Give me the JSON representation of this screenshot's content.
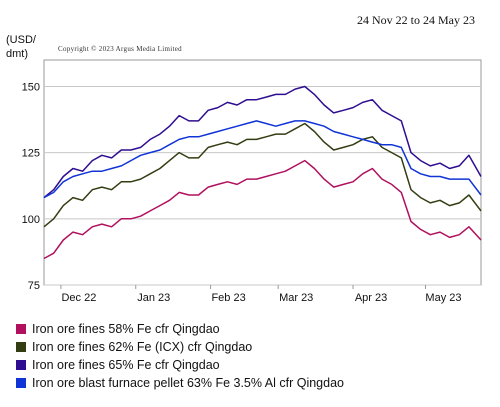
{
  "header": {
    "date_range": "24 Nov 22 to 24 May 23",
    "y_unit_line1": "(USD/",
    "y_unit_line2": "dmt)",
    "copyright": "Copyright © 2023 Argus Media Limited"
  },
  "chart_data": {
    "type": "line",
    "title": "",
    "xlabel": "",
    "ylabel": "(USD/dmt)",
    "ylim": [
      75,
      160
    ],
    "yticks": [
      75,
      100,
      125,
      150
    ],
    "x_range": [
      "2022-11-24",
      "2023-05-24"
    ],
    "xticks": [
      {
        "label": "Dec 22",
        "date": "2022-12-01"
      },
      {
        "label": "Jan 23",
        "date": "2023-01-01"
      },
      {
        "label": "Feb 23",
        "date": "2023-02-01"
      },
      {
        "label": "Mar 23",
        "date": "2023-03-01"
      },
      {
        "label": "Apr 23",
        "date": "2023-04-01"
      },
      {
        "label": "May 23",
        "date": "2023-05-01"
      }
    ],
    "grid": true,
    "legend_position": "bottom",
    "series": [
      {
        "name": "Iron ore fines 58% Fe cfr Qingdao",
        "color": "#b0105e",
        "x": [
          "2022-11-24",
          "2022-11-28",
          "2022-12-02",
          "2022-12-06",
          "2022-12-10",
          "2022-12-14",
          "2022-12-18",
          "2022-12-22",
          "2022-12-26",
          "2022-12-30",
          "2023-01-03",
          "2023-01-07",
          "2023-01-11",
          "2023-01-15",
          "2023-01-19",
          "2023-01-23",
          "2023-01-27",
          "2023-01-31",
          "2023-02-04",
          "2023-02-08",
          "2023-02-12",
          "2023-02-16",
          "2023-02-20",
          "2023-02-24",
          "2023-02-28",
          "2023-03-04",
          "2023-03-08",
          "2023-03-12",
          "2023-03-16",
          "2023-03-20",
          "2023-03-24",
          "2023-03-28",
          "2023-04-01",
          "2023-04-05",
          "2023-04-09",
          "2023-04-13",
          "2023-04-17",
          "2023-04-21",
          "2023-04-25",
          "2023-04-29",
          "2023-05-03",
          "2023-05-07",
          "2023-05-11",
          "2023-05-15",
          "2023-05-19",
          "2023-05-24"
        ],
        "values": [
          85,
          87,
          92,
          95,
          94,
          97,
          98,
          97,
          100,
          100,
          101,
          103,
          105,
          107,
          110,
          109,
          109,
          112,
          113,
          114,
          113,
          115,
          115,
          116,
          117,
          118,
          120,
          122,
          119,
          115,
          112,
          113,
          114,
          117,
          119,
          115,
          113,
          110,
          99,
          96,
          94,
          95,
          93,
          94,
          97,
          92
        ]
      },
      {
        "name": "Iron ore fines 62% Fe (ICX) cfr Qingdao",
        "color": "#333d12",
        "x": [
          "2022-11-24",
          "2022-11-28",
          "2022-12-02",
          "2022-12-06",
          "2022-12-10",
          "2022-12-14",
          "2022-12-18",
          "2022-12-22",
          "2022-12-26",
          "2022-12-30",
          "2023-01-03",
          "2023-01-07",
          "2023-01-11",
          "2023-01-15",
          "2023-01-19",
          "2023-01-23",
          "2023-01-27",
          "2023-01-31",
          "2023-02-04",
          "2023-02-08",
          "2023-02-12",
          "2023-02-16",
          "2023-02-20",
          "2023-02-24",
          "2023-02-28",
          "2023-03-04",
          "2023-03-08",
          "2023-03-12",
          "2023-03-16",
          "2023-03-20",
          "2023-03-24",
          "2023-03-28",
          "2023-04-01",
          "2023-04-05",
          "2023-04-09",
          "2023-04-13",
          "2023-04-17",
          "2023-04-21",
          "2023-04-25",
          "2023-04-29",
          "2023-05-03",
          "2023-05-07",
          "2023-05-11",
          "2023-05-15",
          "2023-05-19",
          "2023-05-24"
        ],
        "values": [
          97,
          100,
          105,
          108,
          107,
          111,
          112,
          111,
          114,
          114,
          115,
          117,
          119,
          122,
          125,
          123,
          123,
          127,
          128,
          129,
          128,
          130,
          130,
          131,
          132,
          132,
          134,
          136,
          133,
          129,
          126,
          127,
          128,
          130,
          131,
          127,
          125,
          123,
          111,
          108,
          106,
          107,
          105,
          106,
          109,
          103
        ]
      },
      {
        "name": "Iron ore fines 65% Fe cfr Qingdao",
        "color": "#2e0d91",
        "x": [
          "2022-11-24",
          "2022-11-28",
          "2022-12-02",
          "2022-12-06",
          "2022-12-10",
          "2022-12-14",
          "2022-12-18",
          "2022-12-22",
          "2022-12-26",
          "2022-12-30",
          "2023-01-03",
          "2023-01-07",
          "2023-01-11",
          "2023-01-15",
          "2023-01-19",
          "2023-01-23",
          "2023-01-27",
          "2023-01-31",
          "2023-02-04",
          "2023-02-08",
          "2023-02-12",
          "2023-02-16",
          "2023-02-20",
          "2023-02-24",
          "2023-02-28",
          "2023-03-04",
          "2023-03-08",
          "2023-03-12",
          "2023-03-16",
          "2023-03-20",
          "2023-03-24",
          "2023-03-28",
          "2023-04-01",
          "2023-04-05",
          "2023-04-09",
          "2023-04-13",
          "2023-04-17",
          "2023-04-21",
          "2023-04-25",
          "2023-04-29",
          "2023-05-03",
          "2023-05-07",
          "2023-05-11",
          "2023-05-15",
          "2023-05-19",
          "2023-05-24"
        ],
        "values": [
          108,
          111,
          116,
          119,
          118,
          122,
          124,
          123,
          126,
          126,
          127,
          130,
          132,
          135,
          139,
          137,
          137,
          141,
          142,
          144,
          143,
          145,
          145,
          146,
          147,
          147,
          149,
          150,
          147,
          143,
          140,
          141,
          142,
          144,
          145,
          141,
          139,
          137,
          125,
          122,
          120,
          121,
          119,
          120,
          124,
          116
        ]
      },
      {
        "name": "Iron ore blast furnace pellet 63% Fe 3.5% Al cfr Qingdao",
        "color": "#1034d6",
        "x": [
          "2022-11-24",
          "2022-11-28",
          "2022-12-02",
          "2022-12-06",
          "2022-12-10",
          "2022-12-14",
          "2022-12-18",
          "2022-12-22",
          "2022-12-26",
          "2022-12-30",
          "2023-01-03",
          "2023-01-07",
          "2023-01-11",
          "2023-01-15",
          "2023-01-19",
          "2023-01-23",
          "2023-01-27",
          "2023-01-31",
          "2023-02-04",
          "2023-02-08",
          "2023-02-12",
          "2023-02-16",
          "2023-02-20",
          "2023-02-24",
          "2023-02-28",
          "2023-03-04",
          "2023-03-08",
          "2023-03-12",
          "2023-03-16",
          "2023-03-20",
          "2023-03-24",
          "2023-03-28",
          "2023-04-01",
          "2023-04-05",
          "2023-04-09",
          "2023-04-13",
          "2023-04-17",
          "2023-04-21",
          "2023-04-25",
          "2023-04-29",
          "2023-05-03",
          "2023-05-07",
          "2023-05-11",
          "2023-05-15",
          "2023-05-19",
          "2023-05-24"
        ],
        "values": [
          108,
          110,
          114,
          116,
          117,
          118,
          118,
          119,
          120,
          122,
          124,
          125,
          126,
          128,
          130,
          131,
          131,
          132,
          133,
          134,
          135,
          136,
          137,
          136,
          135,
          136,
          137,
          137,
          136,
          135,
          133,
          132,
          131,
          130,
          129,
          128,
          128,
          127,
          119,
          117,
          116,
          116,
          115,
          115,
          115,
          109
        ]
      }
    ]
  }
}
